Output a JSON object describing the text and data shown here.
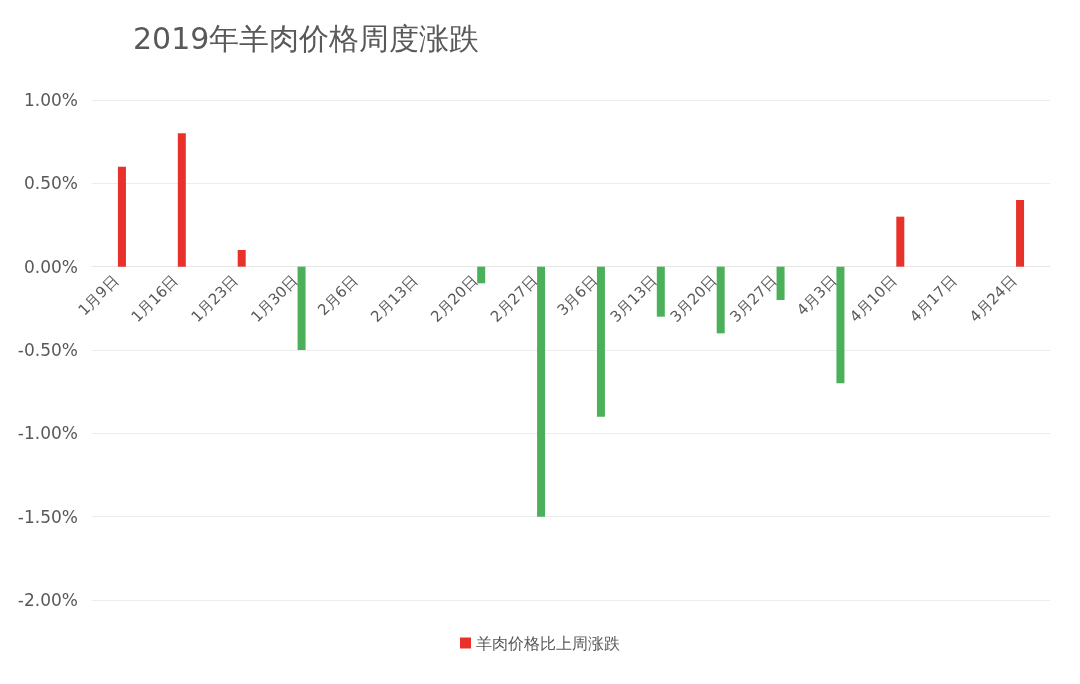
{
  "chart_data": {
    "type": "bar",
    "title": "2019年羊肉价格周度涨跌",
    "categories": [
      "1月9日",
      "1月16日",
      "1月23日",
      "1月30日",
      "2月6日",
      "2月13日",
      "2月20日",
      "2月27日",
      "3月6日",
      "3月13日",
      "3月20日",
      "3月27日",
      "4月3日",
      "4月10日",
      "4月17日",
      "4月24日"
    ],
    "series": [
      {
        "name": "羊肉价格比上周涨跌",
        "color": "#e8312a",
        "colors": [
          "#e8312a",
          "#e8312a",
          "#e8312a",
          "#4caf5a",
          "#4caf5a",
          "#4caf5a",
          "#4caf5a",
          "#4caf5a",
          "#4caf5a",
          "#4caf5a",
          "#4caf5a",
          "#4caf5a",
          "#4caf5a",
          "#e8312a",
          "#e8312a",
          "#e8312a"
        ],
        "values": [
          0.6,
          0.8,
          0.1,
          -0.5,
          0,
          0,
          -0.1,
          -1.5,
          -0.9,
          -0.3,
          -0.4,
          -0.2,
          -0.7,
          0.3,
          0,
          0.4
        ]
      }
    ],
    "ylim": [
      -2,
      1
    ],
    "yticks": [
      {
        "value": -2,
        "label": "-2.00%"
      },
      {
        "value": -1.5,
        "label": "-1.50%"
      },
      {
        "value": -1,
        "label": "-1.00%"
      },
      {
        "value": -0.5,
        "label": "-0.50%"
      },
      {
        "value": 0,
        "label": "0.00%"
      },
      {
        "value": 0.5,
        "label": "0.50%"
      },
      {
        "value": 1,
        "label": "1.00%"
      }
    ],
    "grid": "y",
    "legend": "bottom"
  }
}
